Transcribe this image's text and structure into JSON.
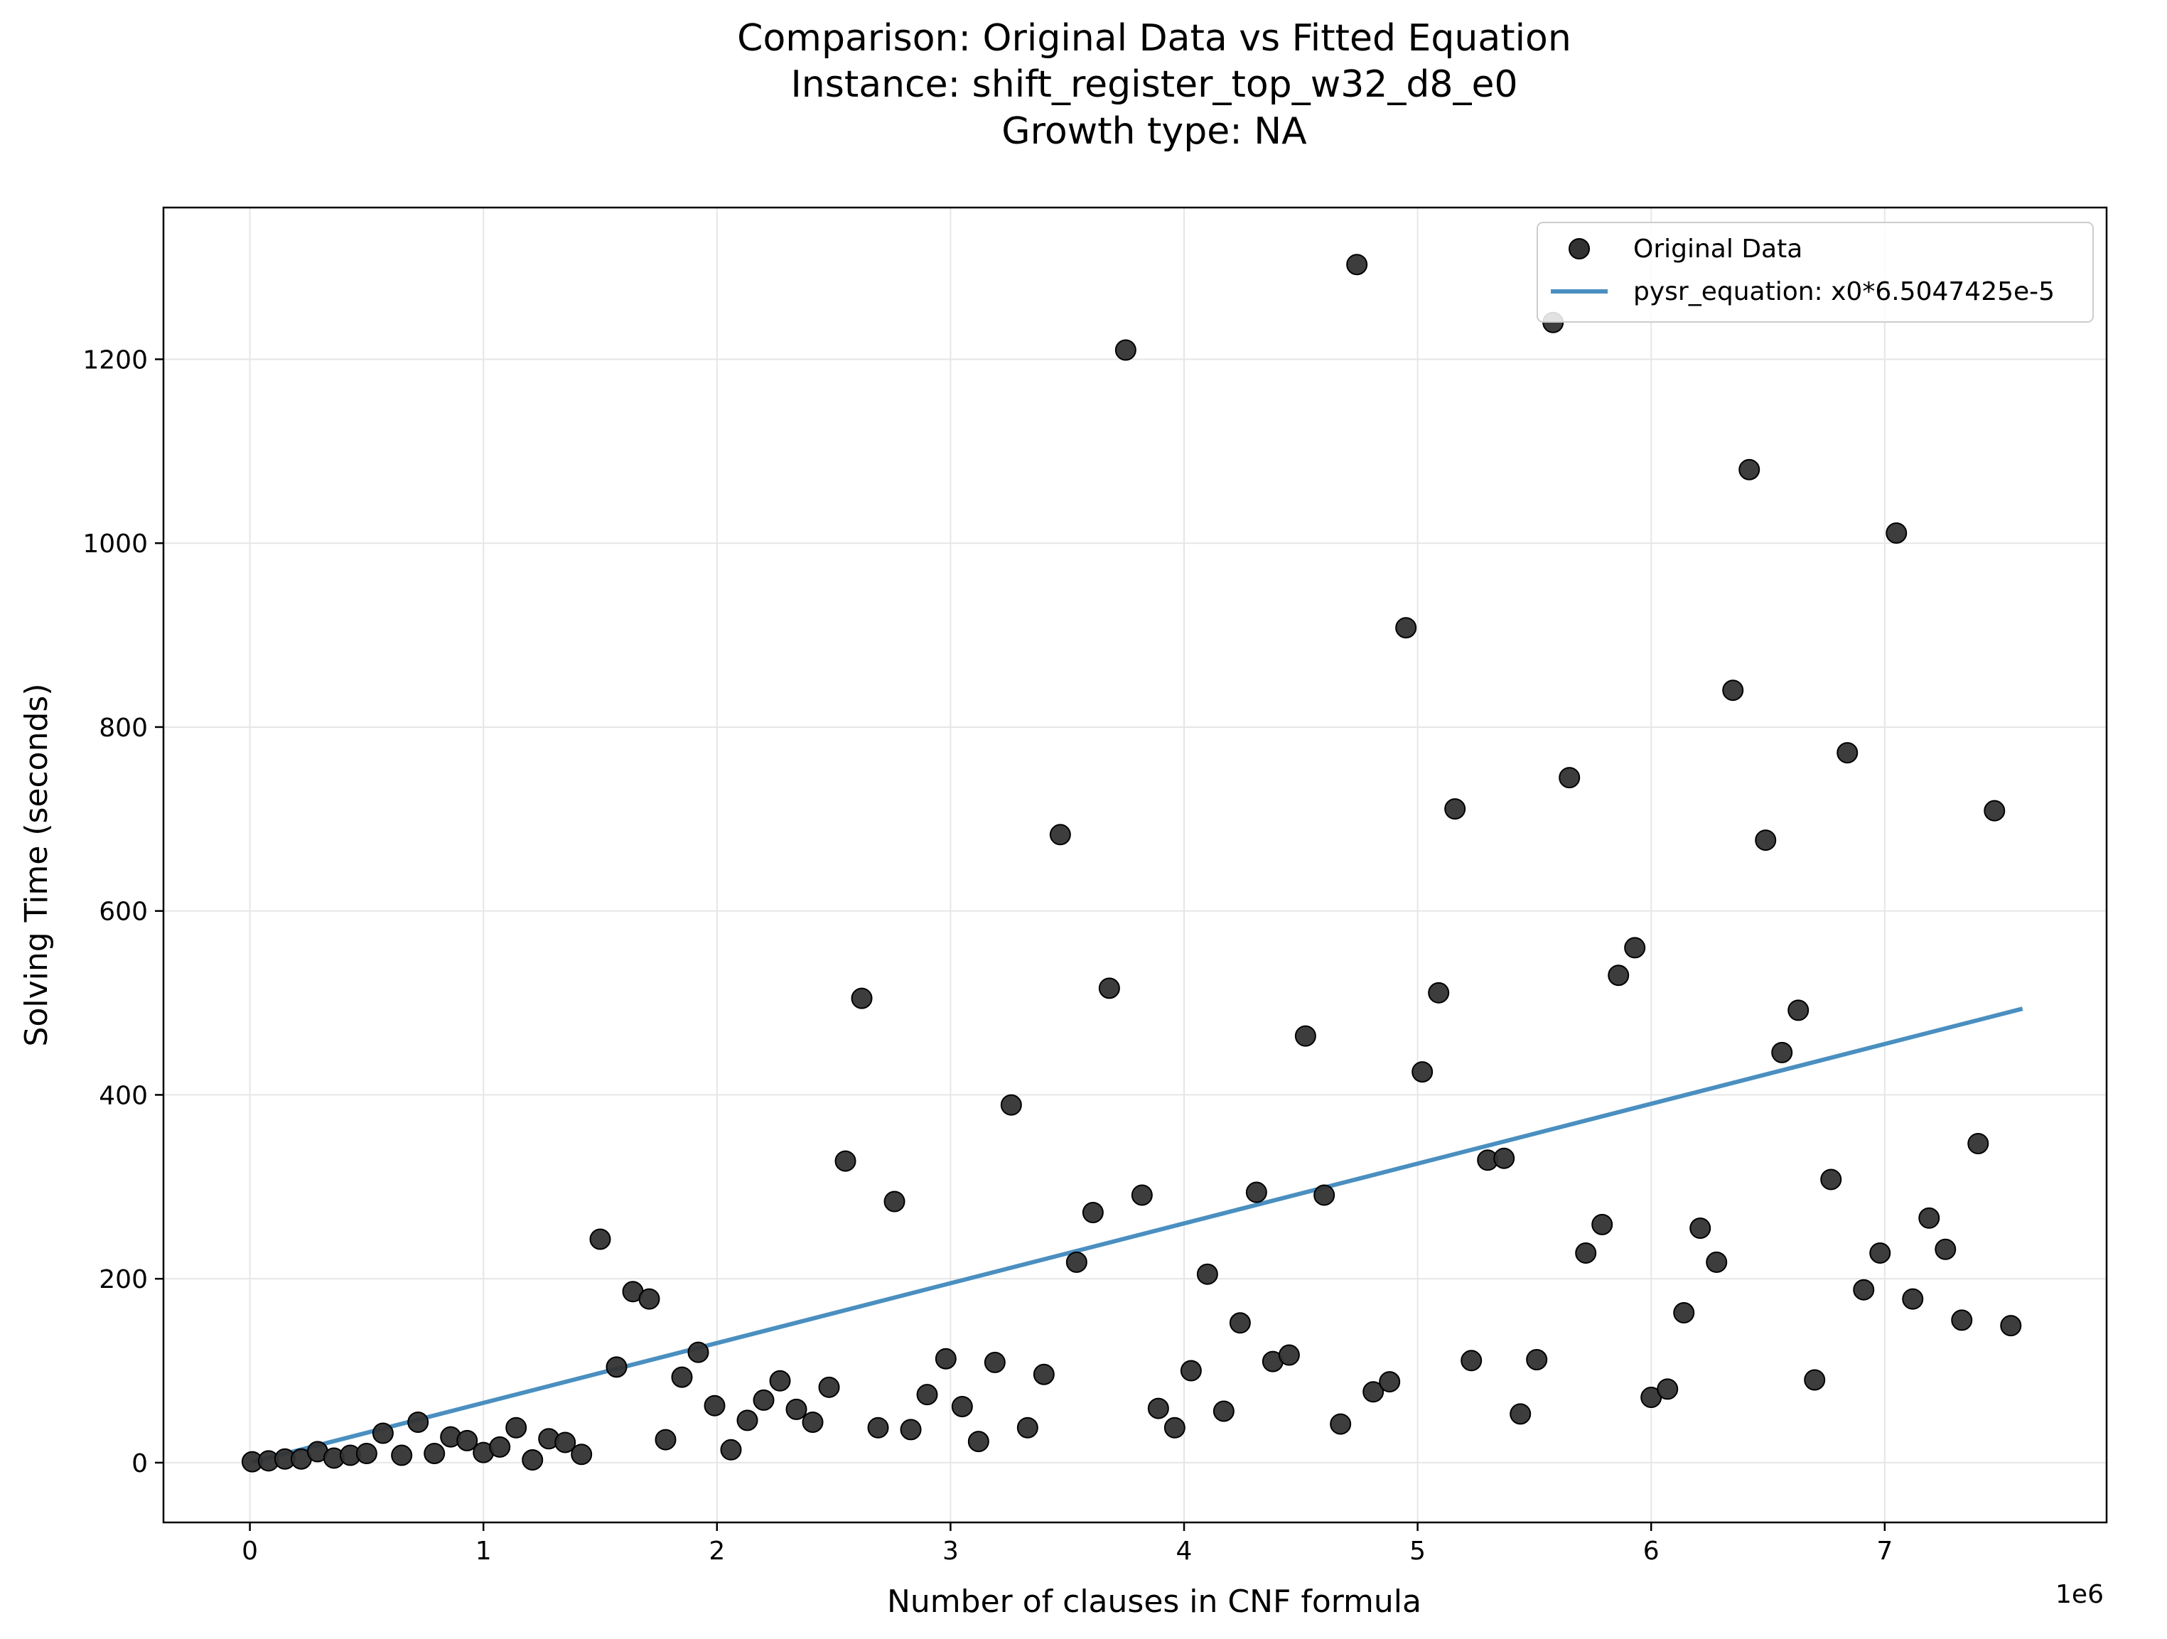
{
  "chart_data": {
    "type": "scatter",
    "title_lines": [
      "Comparison: Original Data vs Fitted Equation",
      "Instance: shift_register_top_w32_d8_e0",
      "Growth type: NA"
    ],
    "xlabel": "Number of clauses in CNF formula",
    "ylabel": "Solving Time (seconds)",
    "x_offset_label": "1e6",
    "x_scale": 1000000,
    "xlim": [
      -0.37,
      7.95
    ],
    "ylim": [
      -65,
      1365
    ],
    "x_ticks": [
      0,
      1,
      2,
      3,
      4,
      5,
      6,
      7
    ],
    "y_ticks": [
      0,
      200,
      400,
      600,
      800,
      1000,
      1200
    ],
    "grid": true,
    "legend_position": "upper right",
    "colors": {
      "points": "#333333",
      "points_edge": "#000000",
      "fit_line": "#4a8fc0",
      "grid": "#e6e6e6"
    },
    "series": [
      {
        "name": "Original Data",
        "kind": "scatter",
        "points": [
          [
            0.01,
            1
          ],
          [
            0.08,
            2
          ],
          [
            0.15,
            4
          ],
          [
            0.22,
            4
          ],
          [
            0.29,
            12
          ],
          [
            0.36,
            5
          ],
          [
            0.43,
            8
          ],
          [
            0.5,
            10
          ],
          [
            0.57,
            32
          ],
          [
            0.65,
            8
          ],
          [
            0.72,
            44
          ],
          [
            0.79,
            10
          ],
          [
            0.86,
            28
          ],
          [
            0.93,
            24
          ],
          [
            1.0,
            11
          ],
          [
            1.07,
            17
          ],
          [
            1.14,
            38
          ],
          [
            1.21,
            3
          ],
          [
            1.28,
            26
          ],
          [
            1.35,
            22
          ],
          [
            1.42,
            9
          ],
          [
            1.5,
            243
          ],
          [
            1.57,
            104
          ],
          [
            1.64,
            186
          ],
          [
            1.71,
            178
          ],
          [
            1.78,
            25
          ],
          [
            1.85,
            93
          ],
          [
            1.92,
            120
          ],
          [
            1.99,
            62
          ],
          [
            2.06,
            14
          ],
          [
            2.13,
            46
          ],
          [
            2.2,
            68
          ],
          [
            2.27,
            89
          ],
          [
            2.34,
            58
          ],
          [
            2.41,
            44
          ],
          [
            2.48,
            82
          ],
          [
            2.55,
            328
          ],
          [
            2.62,
            505
          ],
          [
            2.69,
            38
          ],
          [
            2.76,
            284
          ],
          [
            2.83,
            36
          ],
          [
            2.9,
            74
          ],
          [
            2.98,
            113
          ],
          [
            3.05,
            61
          ],
          [
            3.12,
            23
          ],
          [
            3.19,
            109
          ],
          [
            3.26,
            389
          ],
          [
            3.33,
            38
          ],
          [
            3.4,
            96
          ],
          [
            3.47,
            683
          ],
          [
            3.54,
            218
          ],
          [
            3.61,
            272
          ],
          [
            3.68,
            516
          ],
          [
            3.75,
            1210
          ],
          [
            3.82,
            291
          ],
          [
            3.89,
            59
          ],
          [
            3.96,
            38
          ],
          [
            4.03,
            100
          ],
          [
            4.1,
            205
          ],
          [
            4.17,
            56
          ],
          [
            4.24,
            152
          ],
          [
            4.31,
            294
          ],
          [
            4.38,
            110
          ],
          [
            4.45,
            117
          ],
          [
            4.52,
            464
          ],
          [
            4.6,
            291
          ],
          [
            4.67,
            42
          ],
          [
            4.74,
            1303
          ],
          [
            4.81,
            77
          ],
          [
            4.88,
            88
          ],
          [
            4.95,
            908
          ],
          [
            5.02,
            425
          ],
          [
            5.09,
            511
          ],
          [
            5.16,
            711
          ],
          [
            5.23,
            111
          ],
          [
            5.3,
            329
          ],
          [
            5.37,
            331
          ],
          [
            5.44,
            53
          ],
          [
            5.51,
            112
          ],
          [
            5.58,
            1240
          ],
          [
            5.65,
            745
          ],
          [
            5.72,
            228
          ],
          [
            5.79,
            259
          ],
          [
            5.86,
            530
          ],
          [
            5.93,
            560
          ],
          [
            6.0,
            71
          ],
          [
            6.07,
            80
          ],
          [
            6.14,
            163
          ],
          [
            6.21,
            255
          ],
          [
            6.28,
            218
          ],
          [
            6.35,
            840
          ],
          [
            6.42,
            1080
          ],
          [
            6.49,
            677
          ],
          [
            6.56,
            446
          ],
          [
            6.63,
            492
          ],
          [
            6.7,
            90
          ],
          [
            6.77,
            308
          ],
          [
            6.84,
            772
          ],
          [
            6.91,
            188
          ],
          [
            6.98,
            228
          ],
          [
            7.05,
            1011
          ],
          [
            7.12,
            178
          ],
          [
            7.19,
            266
          ],
          [
            7.26,
            232
          ],
          [
            7.33,
            155
          ],
          [
            7.4,
            347
          ],
          [
            7.47,
            709
          ],
          [
            7.54,
            149
          ]
        ]
      },
      {
        "name": "pysr_equation: x0*6.5047425e-5",
        "kind": "line",
        "x": [
          0.01,
          7.59
        ],
        "coefficient": 6.5047425e-05
      }
    ]
  }
}
